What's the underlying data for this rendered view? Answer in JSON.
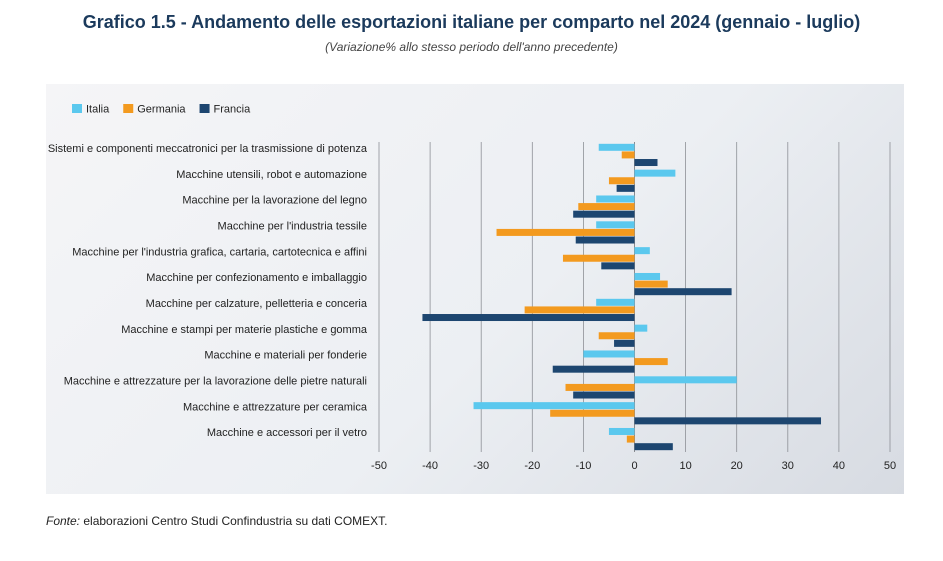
{
  "title": "Grafico 1.5 - Andamento delle esportazioni italiane per comparto nel 2024 (gennaio - luglio)",
  "subtitle": "(Variazione% allo stesso periodo dell'anno precedente)",
  "source": {
    "label": "Fonte:",
    "text": " elaborazioni Centro Studi Confindustria su dati COMEXT."
  },
  "colors": {
    "Italia": "#5bc8ee",
    "Germania": "#f39a1f",
    "Francia": "#1d4670"
  },
  "chart_data": {
    "type": "bar",
    "orientation": "horizontal",
    "categories": [
      "Sistemi e componenti meccatronici per la trasmissione di potenza",
      "Macchine utensili, robot e automazione",
      "Macchine per la lavorazione del legno",
      "Macchine per l'industria tessile",
      "Macchine per l'industria grafica, cartaria, cartotecnica e affini",
      "Macchine per confezionamento e imballaggio",
      "Macchine per calzature, pelletteria e conceria",
      "Macchine e stampi per materie plastiche e gomma",
      "Macchine e materiali per fonderie",
      "Macchine e attrezzature per la lavorazione delle pietre naturali",
      "Macchine e attrezzature per ceramica",
      "Macchine e accessori per il vetro"
    ],
    "series": [
      {
        "name": "Italia",
        "values": [
          -7,
          8,
          -7.5,
          -7.5,
          3,
          5,
          -7.5,
          2.5,
          -10,
          20,
          -31.5,
          -5
        ]
      },
      {
        "name": "Germania",
        "values": [
          -2.5,
          -5,
          -11,
          -27,
          -14,
          6.5,
          -21.5,
          -7,
          6.5,
          -13.5,
          -16.5,
          -1.5
        ]
      },
      {
        "name": "Francia",
        "values": [
          4.5,
          -3.5,
          -12,
          -11.5,
          -6.5,
          19,
          -41.5,
          -4,
          -16,
          -12,
          36.5,
          7.5
        ]
      }
    ],
    "xlim": [
      -50,
      50
    ],
    "xticks": [
      -50,
      -40,
      -30,
      -20,
      -10,
      0,
      10,
      20,
      30,
      40,
      50
    ],
    "grid": true,
    "legend": "top-left"
  }
}
